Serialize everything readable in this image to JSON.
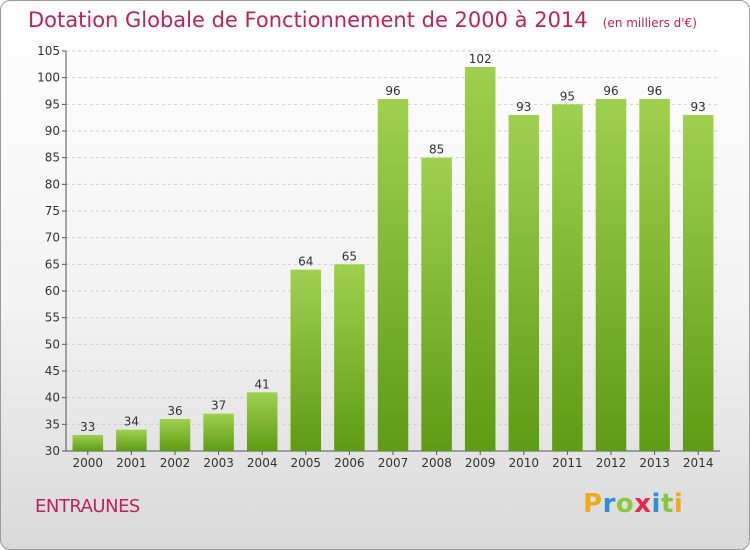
{
  "title": "Dotation Globale de Fonctionnement de 2000 à 2014",
  "unit_note": "(en milliers d'€)",
  "commune": "ENTRAUNES",
  "logo": {
    "text": "Proxiti",
    "letters": [
      {
        "ch": "P",
        "color": "#f0a81c"
      },
      {
        "ch": "r",
        "color": "#2d8fd8"
      },
      {
        "ch": "o",
        "color": "#8cc63f"
      },
      {
        "ch": "x",
        "color": "#e8294e"
      },
      {
        "ch": "i",
        "color": "#2d8fd8"
      },
      {
        "ch": "t",
        "color": "#8cc63f"
      },
      {
        "ch": "i",
        "color": "#f0a81c"
      }
    ]
  },
  "colors": {
    "bar_top": "#9fd04f",
    "bar_bottom": "#5f9b14",
    "title": "#c0215a",
    "grid": "#cfcfcf"
  },
  "chart_data": {
    "type": "bar",
    "title": "Dotation Globale de Fonctionnement de 2000 à 2014",
    "xlabel": "",
    "ylabel": "",
    "ylim": [
      30,
      105
    ],
    "yticks": [
      30,
      35,
      40,
      45,
      50,
      55,
      60,
      65,
      70,
      75,
      80,
      85,
      90,
      95,
      100,
      105
    ],
    "grid": true,
    "categories": [
      "2000",
      "2001",
      "2002",
      "2003",
      "2004",
      "2005",
      "2006",
      "2007",
      "2008",
      "2009",
      "2010",
      "2011",
      "2012",
      "2013",
      "2014"
    ],
    "values": [
      33,
      34,
      36,
      37,
      41,
      64,
      65,
      96,
      85,
      102,
      93,
      95,
      96,
      96,
      93
    ]
  }
}
